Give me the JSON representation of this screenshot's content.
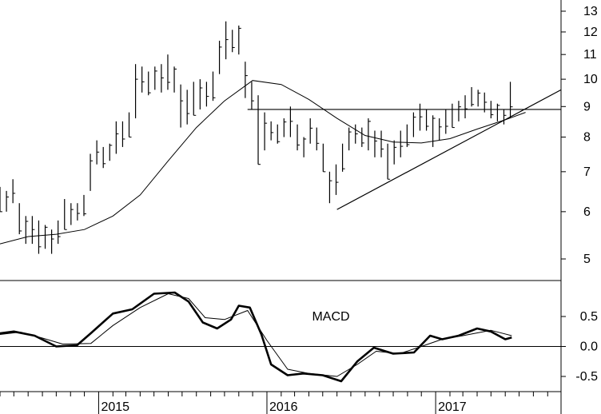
{
  "chart_data": [
    {
      "type": "ohlc",
      "panel": "price",
      "scale": "log",
      "ylim": [
        4.6,
        13.5
      ],
      "y_ticks": [
        {
          "value": 13,
          "label": "13"
        },
        {
          "value": 12,
          "label": "12"
        },
        {
          "value": 11,
          "label": "11"
        },
        {
          "value": 10,
          "label": "10"
        },
        {
          "value": 9,
          "label": "9"
        },
        {
          "value": 8,
          "label": "8"
        },
        {
          "value": 7,
          "label": "7"
        },
        {
          "value": 6,
          "label": "6"
        },
        {
          "value": 5,
          "label": "5"
        }
      ],
      "x_start": "2014-06-01",
      "x_end": "2017-09-30",
      "x_labels": [
        "2015",
        "2016",
        "2017"
      ],
      "moving_average": [
        [
          "2014-06-01",
          5.3
        ],
        [
          "2014-08-01",
          5.45
        ],
        [
          "2014-10-01",
          5.5
        ],
        [
          "2014-12-01",
          5.6
        ],
        [
          "2015-02-01",
          5.9
        ],
        [
          "2015-04-01",
          6.4
        ],
        [
          "2015-06-01",
          7.3
        ],
        [
          "2015-08-01",
          8.3
        ],
        [
          "2015-10-01",
          9.2
        ],
        [
          "2015-12-01",
          9.95
        ],
        [
          "2016-02-01",
          9.8
        ],
        [
          "2016-04-01",
          9.25
        ],
        [
          "2016-06-01",
          8.6
        ],
        [
          "2016-08-01",
          8.05
        ],
        [
          "2016-10-01",
          7.85
        ],
        [
          "2016-12-01",
          7.82
        ],
        [
          "2017-02-01",
          7.95
        ],
        [
          "2017-04-01",
          8.25
        ],
        [
          "2017-06-01",
          8.55
        ],
        [
          "2017-07-15",
          8.8
        ]
      ],
      "support_line": {
        "from": [
          "2016-06-01",
          6.05
        ],
        "to": [
          "2017-09-30",
          9.6
        ]
      },
      "resistance_line": {
        "from": [
          "2015-11-20",
          8.9
        ],
        "to": [
          "2017-09-30",
          8.9
        ]
      },
      "weekly_bars": [
        [
          "2014-06-01",
          6.0,
          6.6
        ],
        [
          "2014-06-15",
          6.0,
          6.5
        ],
        [
          "2014-06-29",
          6.2,
          6.8
        ],
        [
          "2014-07-13",
          5.5,
          6.2
        ],
        [
          "2014-07-27",
          5.3,
          5.9
        ],
        [
          "2014-08-10",
          5.3,
          5.9
        ],
        [
          "2014-08-24",
          5.1,
          5.8
        ],
        [
          "2014-09-07",
          5.2,
          5.7
        ],
        [
          "2014-09-21",
          5.1,
          5.6
        ],
        [
          "2014-10-05",
          5.3,
          5.8
        ],
        [
          "2014-10-19",
          5.6,
          6.3
        ],
        [
          "2014-11-02",
          5.7,
          6.2
        ],
        [
          "2014-11-16",
          5.8,
          6.2
        ],
        [
          "2014-11-30",
          5.9,
          6.4
        ],
        [
          "2014-12-14",
          6.5,
          7.5
        ],
        [
          "2014-12-28",
          7.2,
          7.9
        ],
        [
          "2015-01-11",
          7.1,
          7.7
        ],
        [
          "2015-01-25",
          7.3,
          7.8
        ],
        [
          "2015-02-08",
          7.5,
          8.5
        ],
        [
          "2015-02-22",
          7.7,
          8.5
        ],
        [
          "2015-03-08",
          8.0,
          8.8
        ],
        [
          "2015-03-22",
          8.6,
          10.6
        ],
        [
          "2015-04-05",
          9.5,
          10.5
        ],
        [
          "2015-04-19",
          9.4,
          10.3
        ],
        [
          "2015-05-03",
          9.6,
          10.5
        ],
        [
          "2015-05-17",
          9.5,
          10.6
        ],
        [
          "2015-05-31",
          9.6,
          11.0
        ],
        [
          "2015-06-14",
          9.5,
          10.5
        ],
        [
          "2015-06-28",
          8.3,
          9.8
        ],
        [
          "2015-07-12",
          8.4,
          9.6
        ],
        [
          "2015-07-26",
          8.7,
          9.9
        ],
        [
          "2015-08-09",
          8.9,
          10.0
        ],
        [
          "2015-08-23",
          9.0,
          9.9
        ],
        [
          "2015-09-06",
          9.2,
          10.3
        ],
        [
          "2015-09-20",
          10.2,
          11.6
        ],
        [
          "2015-10-04",
          10.8,
          12.5
        ],
        [
          "2015-10-18",
          11.1,
          12.1
        ],
        [
          "2015-11-01",
          11.0,
          12.3
        ],
        [
          "2015-11-15",
          9.3,
          10.7
        ],
        [
          "2015-11-29",
          8.9,
          9.9
        ],
        [
          "2015-12-13",
          7.2,
          9.4
        ],
        [
          "2015-12-27",
          7.6,
          8.8
        ],
        [
          "2016-01-10",
          7.9,
          8.5
        ],
        [
          "2016-01-24",
          7.8,
          8.4
        ],
        [
          "2016-02-07",
          8.0,
          8.6
        ],
        [
          "2016-02-21",
          8.0,
          9.0
        ],
        [
          "2016-03-07",
          7.6,
          8.4
        ],
        [
          "2016-03-21",
          7.4,
          8.0
        ],
        [
          "2016-04-04",
          7.8,
          8.6
        ],
        [
          "2016-04-18",
          7.6,
          8.3
        ],
        [
          "2016-05-02",
          7.0,
          7.8
        ],
        [
          "2016-05-16",
          6.2,
          7.0
        ],
        [
          "2016-05-30",
          6.4,
          7.2
        ],
        [
          "2016-06-13",
          7.0,
          7.8
        ],
        [
          "2016-06-27",
          7.6,
          8.3
        ],
        [
          "2016-07-11",
          7.8,
          8.4
        ],
        [
          "2016-07-25",
          7.7,
          8.3
        ],
        [
          "2016-08-08",
          7.6,
          8.6
        ],
        [
          "2016-08-22",
          7.4,
          8.2
        ],
        [
          "2016-09-05",
          7.4,
          8.2
        ],
        [
          "2016-09-19",
          6.8,
          7.8
        ],
        [
          "2016-10-03",
          7.2,
          7.9
        ],
        [
          "2016-10-17",
          7.4,
          8.2
        ],
        [
          "2016-10-31",
          7.7,
          8.4
        ],
        [
          "2016-11-14",
          8.0,
          8.8
        ],
        [
          "2016-11-28",
          8.2,
          9.1
        ],
        [
          "2016-12-12",
          8.2,
          8.9
        ],
        [
          "2016-12-26",
          7.7,
          8.7
        ],
        [
          "2017-01-09",
          7.9,
          8.6
        ],
        [
          "2017-01-23",
          8.1,
          8.9
        ],
        [
          "2017-02-06",
          8.3,
          9.1
        ],
        [
          "2017-02-20",
          8.5,
          9.2
        ],
        [
          "2017-03-06",
          8.6,
          9.4
        ],
        [
          "2017-03-20",
          9.0,
          9.7
        ],
        [
          "2017-04-03",
          9.0,
          9.6
        ],
        [
          "2017-04-17",
          8.8,
          9.5
        ],
        [
          "2017-05-01",
          8.6,
          9.2
        ],
        [
          "2017-05-15",
          8.5,
          9.1
        ],
        [
          "2017-05-29",
          8.4,
          8.9
        ],
        [
          "2017-06-12",
          8.6,
          9.9
        ]
      ]
    },
    {
      "type": "line",
      "panel": "indicator",
      "label": "MACD",
      "ylim": [
        -0.7,
        1.1
      ],
      "y_ticks": [
        {
          "value": 0.5,
          "label": "0.5"
        },
        {
          "value": 0.0,
          "label": "0.0"
        },
        {
          "value": -0.5,
          "label": "-0.5"
        }
      ],
      "zero_line": true,
      "series": [
        {
          "role": "macd",
          "points": [
            [
              "2014-06-01",
              0.22
            ],
            [
              "2014-07-01",
              0.25
            ],
            [
              "2014-08-15",
              0.18
            ],
            [
              "2014-10-01",
              0.0
            ],
            [
              "2014-11-15",
              0.02
            ],
            [
              "2014-12-15",
              0.22
            ],
            [
              "2015-02-01",
              0.55
            ],
            [
              "2015-03-15",
              0.62
            ],
            [
              "2015-05-01",
              0.88
            ],
            [
              "2015-06-15",
              0.9
            ],
            [
              "2015-07-15",
              0.75
            ],
            [
              "2015-08-15",
              0.4
            ],
            [
              "2015-09-15",
              0.3
            ],
            [
              "2015-10-15",
              0.45
            ],
            [
              "2015-11-01",
              0.68
            ],
            [
              "2015-11-25",
              0.65
            ],
            [
              "2015-12-20",
              0.2
            ],
            [
              "2016-01-10",
              -0.3
            ],
            [
              "2016-02-15",
              -0.48
            ],
            [
              "2016-03-20",
              -0.45
            ],
            [
              "2016-05-01",
              -0.48
            ],
            [
              "2016-06-10",
              -0.58
            ],
            [
              "2016-07-15",
              -0.25
            ],
            [
              "2016-08-20",
              -0.02
            ],
            [
              "2016-10-01",
              -0.12
            ],
            [
              "2016-11-15",
              -0.1
            ],
            [
              "2016-12-20",
              0.18
            ],
            [
              "2017-01-15",
              0.12
            ],
            [
              "2017-02-20",
              0.18
            ],
            [
              "2017-04-01",
              0.3
            ],
            [
              "2017-05-01",
              0.25
            ],
            [
              "2017-06-01",
              0.12
            ],
            [
              "2017-06-15",
              0.15
            ]
          ]
        },
        {
          "role": "signal",
          "points": [
            [
              "2014-06-01",
              0.2
            ],
            [
              "2014-07-15",
              0.24
            ],
            [
              "2014-09-01",
              0.14
            ],
            [
              "2014-10-15",
              0.04
            ],
            [
              "2014-12-15",
              0.05
            ],
            [
              "2015-02-01",
              0.35
            ],
            [
              "2015-04-01",
              0.65
            ],
            [
              "2015-06-01",
              0.88
            ],
            [
              "2015-07-15",
              0.8
            ],
            [
              "2015-08-20",
              0.48
            ],
            [
              "2015-10-01",
              0.45
            ],
            [
              "2015-11-20",
              0.6
            ],
            [
              "2016-01-01",
              0.1
            ],
            [
              "2016-02-15",
              -0.38
            ],
            [
              "2016-04-01",
              -0.45
            ],
            [
              "2016-06-01",
              -0.5
            ],
            [
              "2016-07-15",
              -0.3
            ],
            [
              "2016-08-25",
              -0.08
            ],
            [
              "2016-10-15",
              -0.12
            ],
            [
              "2016-12-01",
              0.0
            ],
            [
              "2017-01-15",
              0.12
            ],
            [
              "2017-03-01",
              0.18
            ],
            [
              "2017-05-01",
              0.27
            ],
            [
              "2017-06-15",
              0.18
            ]
          ]
        }
      ]
    }
  ]
}
